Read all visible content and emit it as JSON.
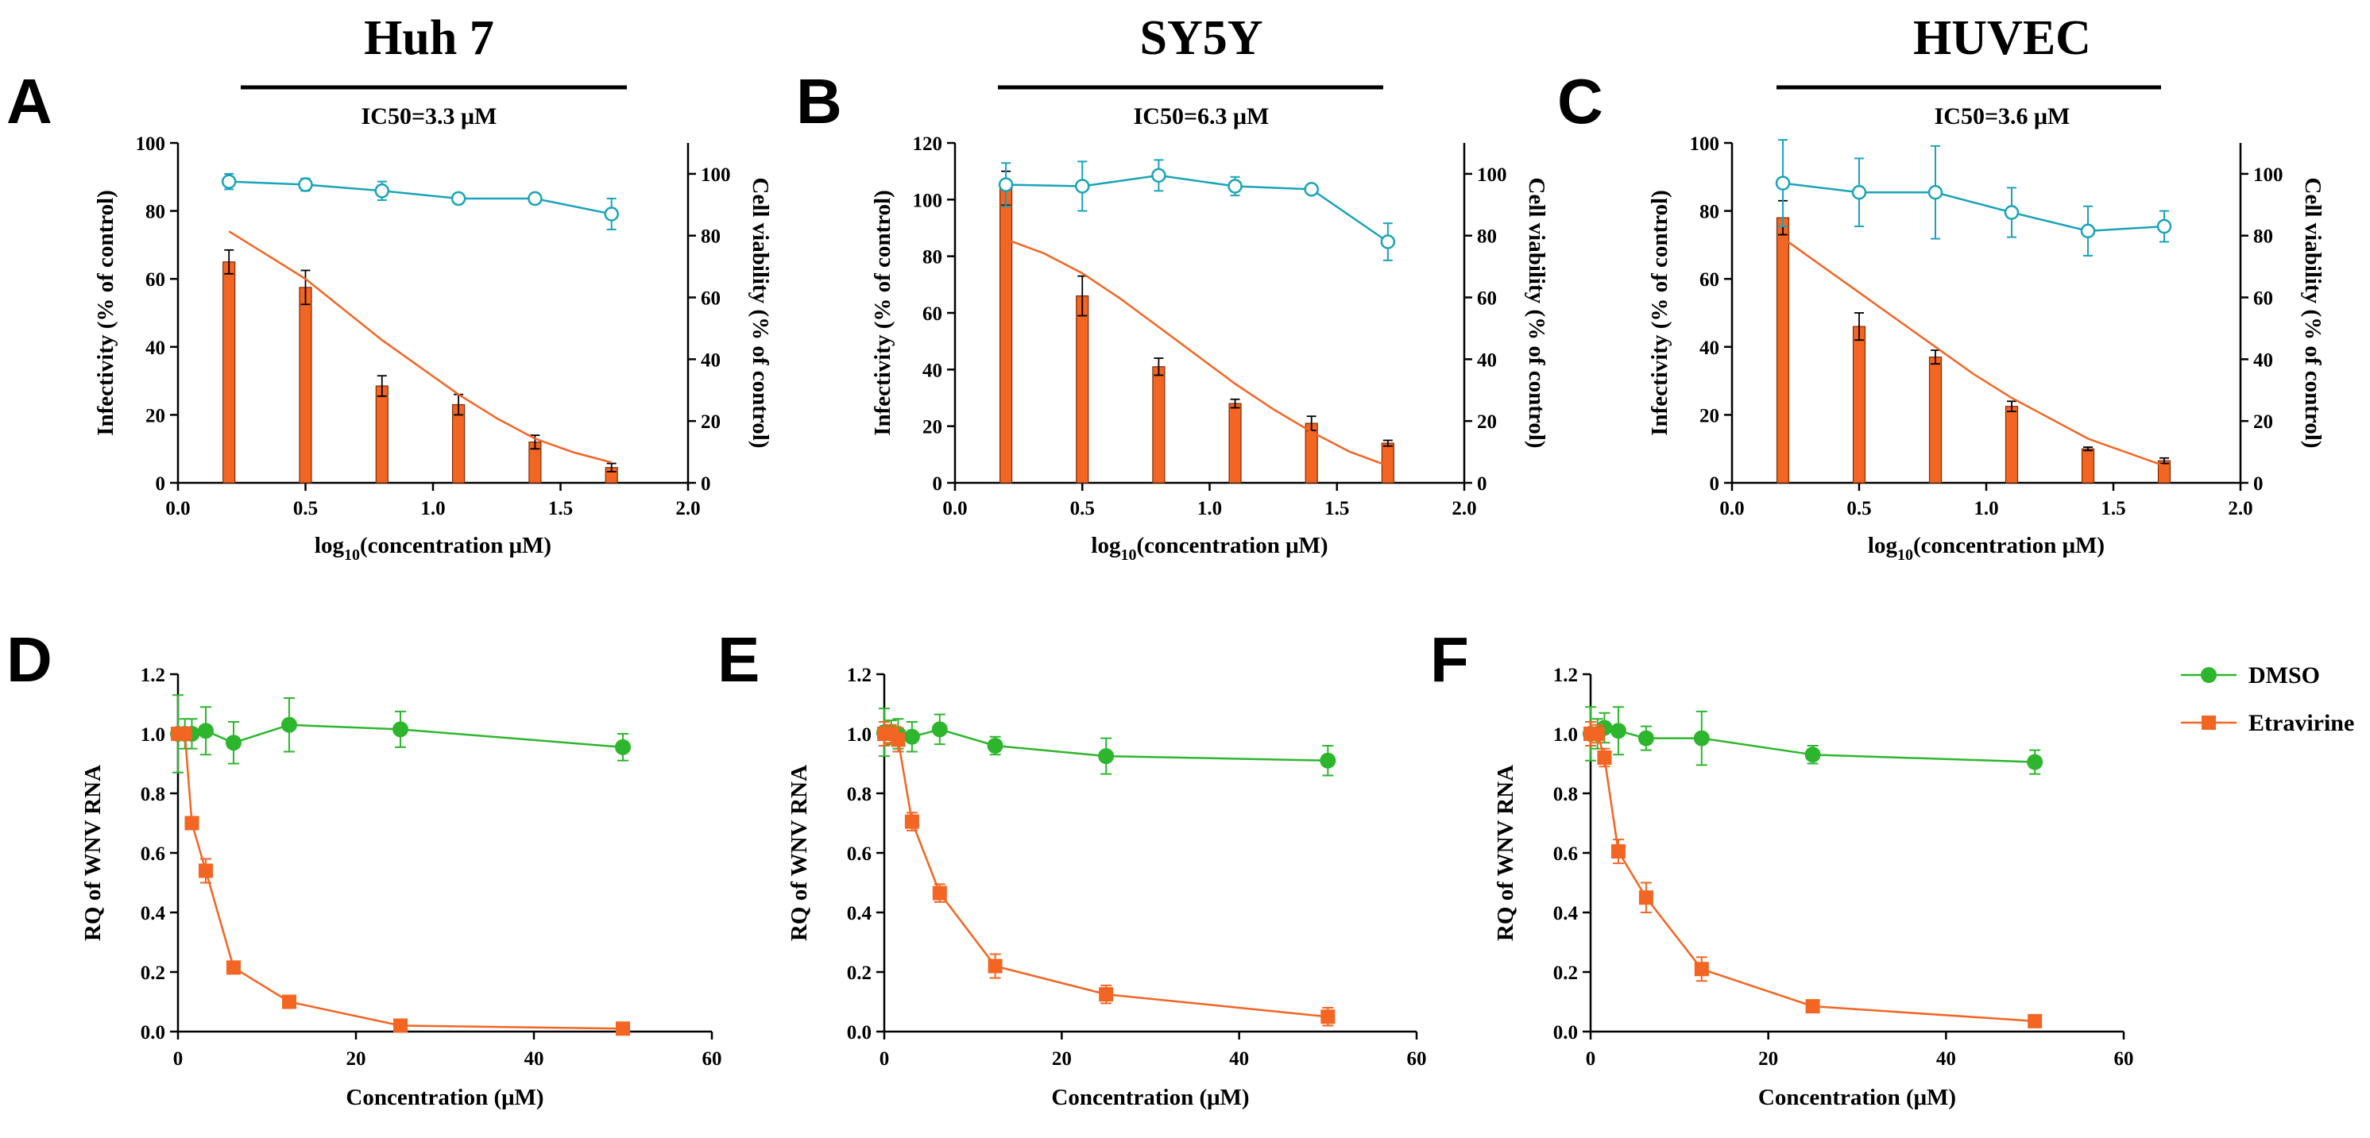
{
  "colors": {
    "bar": "#f26522",
    "viability": "#1aa3b8",
    "dmso": "#2db62d",
    "etravirine": "#f26522",
    "axis": "#000000"
  },
  "chart_data": [
    {
      "id": "A",
      "type": "bar",
      "cell_line": "Huh 7",
      "ic50": "IC50=3.3 μM",
      "xlabel_main": "log",
      "xlabel_sub": "10",
      "xlabel_rest": "(concentration μM)",
      "ylabel": "Infectivity (% of control)",
      "y2label": "Cell viability (% of control)",
      "xlim": [
        0,
        2
      ],
      "xticks": [
        0,
        0.5,
        1,
        1.5,
        2
      ],
      "xtick_labels": [
        "0.0",
        "0.5",
        "1.0",
        "1.5",
        "2.0"
      ],
      "ylim": [
        0,
        100
      ],
      "yticks": [
        0,
        20,
        40,
        60,
        80,
        100
      ],
      "ytick_labels": [
        "0",
        "20",
        "40",
        "60",
        "80",
        "100"
      ],
      "y2lim": [
        0,
        110
      ],
      "y2ticks": [
        0,
        20,
        40,
        60,
        80,
        100
      ],
      "y2tick_labels": [
        "0",
        "20",
        "40",
        "60",
        "80",
        "100"
      ],
      "x": [
        0.2,
        0.5,
        0.8,
        1.1,
        1.4,
        1.7
      ],
      "bars": [
        65,
        57.5,
        28.5,
        23,
        12,
        4.5
      ],
      "bar_err": [
        3.5,
        5,
        3,
        3,
        2,
        1.2
      ],
      "fit": [
        [
          0.2,
          74
        ],
        [
          0.35,
          67
        ],
        [
          0.5,
          60
        ],
        [
          0.65,
          51
        ],
        [
          0.8,
          42
        ],
        [
          0.95,
          34
        ],
        [
          1.1,
          26
        ],
        [
          1.25,
          19
        ],
        [
          1.4,
          13
        ],
        [
          1.55,
          9
        ],
        [
          1.7,
          6
        ]
      ],
      "viability": [
        97.5,
        96.5,
        94.5,
        92,
        92,
        87
      ],
      "viability_err": [
        2.5,
        2,
        3,
        0.5,
        0.5,
        5
      ]
    },
    {
      "id": "B",
      "type": "bar",
      "cell_line": "SY5Y",
      "ic50": "IC50=6.3 μM",
      "xlabel_main": "log",
      "xlabel_sub": "10",
      "xlabel_rest": "(concentration μM)",
      "ylabel": "Infectivity (% of control)",
      "y2label": "Cell viability (% of control)",
      "xlim": [
        0,
        2
      ],
      "xticks": [
        0,
        0.5,
        1,
        1.5,
        2
      ],
      "xtick_labels": [
        "0.0",
        "0.5",
        "1.0",
        "1.5",
        "2.0"
      ],
      "ylim": [
        0,
        120
      ],
      "yticks": [
        0,
        20,
        40,
        60,
        80,
        100,
        120
      ],
      "ytick_labels": [
        "0",
        "20",
        "40",
        "60",
        "80",
        "100",
        "120"
      ],
      "y2lim": [
        0,
        110
      ],
      "y2ticks": [
        0,
        20,
        40,
        60,
        80,
        100
      ],
      "y2tick_labels": [
        "0",
        "20",
        "40",
        "60",
        "80",
        "100"
      ],
      "x": [
        0.2,
        0.5,
        0.8,
        1.1,
        1.4,
        1.7
      ],
      "bars": [
        104,
        66,
        41,
        28,
        21,
        14
      ],
      "bar_err": [
        6,
        7,
        3,
        1.5,
        2.5,
        1
      ],
      "fit": [
        [
          0.2,
          86
        ],
        [
          0.35,
          81
        ],
        [
          0.5,
          74
        ],
        [
          0.65,
          65
        ],
        [
          0.8,
          55
        ],
        [
          0.95,
          45
        ],
        [
          1.1,
          35
        ],
        [
          1.25,
          26
        ],
        [
          1.4,
          18
        ],
        [
          1.55,
          11
        ],
        [
          1.7,
          6
        ]
      ],
      "viability": [
        96.5,
        96,
        99.5,
        96,
        95,
        78
      ],
      "viability_err": [
        7,
        8,
        5,
        3,
        1.5,
        6
      ]
    },
    {
      "id": "C",
      "type": "bar",
      "cell_line": "HUVEC",
      "ic50": "IC50=3.6 μM",
      "xlabel_main": "log",
      "xlabel_sub": "10",
      "xlabel_rest": "(concentration μM)",
      "ylabel": "Infectivity (% of control)",
      "y2label": "Cell viability (% of control)",
      "xlim": [
        0,
        2
      ],
      "xticks": [
        0,
        0.5,
        1,
        1.5,
        2
      ],
      "xtick_labels": [
        "0.0",
        "0.5",
        "1.0",
        "1.5",
        "2.0"
      ],
      "ylim": [
        0,
        100
      ],
      "yticks": [
        0,
        20,
        40,
        60,
        80,
        100
      ],
      "ytick_labels": [
        "0",
        "20",
        "40",
        "60",
        "80",
        "100"
      ],
      "y2lim": [
        0,
        110
      ],
      "y2ticks": [
        0,
        20,
        40,
        60,
        80,
        100
      ],
      "y2tick_labels": [
        "0",
        "20",
        "40",
        "60",
        "80",
        "100"
      ],
      "x": [
        0.2,
        0.5,
        0.8,
        1.1,
        1.4,
        1.7
      ],
      "bars": [
        78,
        46,
        37,
        22.5,
        10,
        6.5
      ],
      "bar_err": [
        5,
        4,
        2,
        1.5,
        0.5,
        0.8
      ],
      "fit": [
        [
          0.2,
          72
        ],
        [
          0.35,
          64
        ],
        [
          0.5,
          56
        ],
        [
          0.65,
          48
        ],
        [
          0.8,
          40
        ],
        [
          0.95,
          32
        ],
        [
          1.1,
          25
        ],
        [
          1.25,
          19
        ],
        [
          1.4,
          13
        ],
        [
          1.55,
          9
        ],
        [
          1.7,
          5
        ]
      ],
      "viability": [
        97,
        94,
        94,
        87.5,
        81.5,
        83
      ],
      "viability_err": [
        14,
        11,
        15,
        8,
        8,
        5
      ]
    },
    {
      "id": "D",
      "type": "line",
      "xlabel": "Concentration (μM)",
      "ylabel": "RQ of WNV RNA",
      "xlim": [
        0,
        60
      ],
      "xticks": [
        0,
        20,
        40,
        60
      ],
      "xtick_labels": [
        "0",
        "20",
        "40",
        "60"
      ],
      "ylim": [
        0,
        1.2
      ],
      "yticks": [
        0,
        0.2,
        0.4,
        0.6,
        0.8,
        1.0,
        1.2
      ],
      "ytick_labels": [
        "0.0",
        "0.2",
        "0.4",
        "0.6",
        "0.8",
        "1.0",
        "1.2"
      ],
      "x": [
        0,
        0.78,
        1.56,
        3.125,
        6.25,
        12.5,
        25,
        50
      ],
      "series": [
        {
          "name": "DMSO",
          "values": [
            1.0,
            1.0,
            1.0,
            1.01,
            0.97,
            1.03,
            1.015,
            0.955
          ],
          "err": [
            0.13,
            0.05,
            0.05,
            0.08,
            0.07,
            0.09,
            0.06,
            0.045
          ]
        },
        {
          "name": "Etravirine",
          "values": [
            1.0,
            1.0,
            0.7,
            0.54,
            0.215,
            0.1,
            0.02,
            0.01
          ],
          "err": [
            0.02,
            0.02,
            0.02,
            0.04,
            0.02,
            0.01,
            0.005,
            0.005
          ]
        }
      ]
    },
    {
      "id": "E",
      "type": "line",
      "xlabel": "Concentration (μM)",
      "ylabel": "RQ of WNV RNA",
      "xlim": [
        0,
        60
      ],
      "xticks": [
        0,
        20,
        40,
        60
      ],
      "xtick_labels": [
        "0",
        "20",
        "40",
        "60"
      ],
      "ylim": [
        0,
        1.2
      ],
      "yticks": [
        0,
        0.2,
        0.4,
        0.6,
        0.8,
        1.0,
        1.2
      ],
      "ytick_labels": [
        "0.0",
        "0.2",
        "0.4",
        "0.6",
        "0.8",
        "1.0",
        "1.2"
      ],
      "x": [
        0,
        0.78,
        1.56,
        3.125,
        6.25,
        12.5,
        25,
        50
      ],
      "series": [
        {
          "name": "DMSO",
          "values": [
            1.005,
            1.005,
            1.0,
            0.99,
            1.015,
            0.96,
            0.925,
            0.91
          ],
          "err": [
            0.08,
            0.04,
            0.05,
            0.05,
            0.05,
            0.03,
            0.06,
            0.05
          ]
        },
        {
          "name": "Etravirine",
          "values": [
            1.0,
            1.0,
            0.98,
            0.705,
            0.465,
            0.22,
            0.125,
            0.05
          ],
          "err": [
            0.04,
            0.03,
            0.04,
            0.03,
            0.03,
            0.04,
            0.03,
            0.03
          ]
        }
      ]
    },
    {
      "id": "F",
      "type": "line",
      "xlabel": "Concentration (μM)",
      "ylabel": "RQ of WNV RNA",
      "xlim": [
        0,
        60
      ],
      "xticks": [
        0,
        20,
        40,
        60
      ],
      "xtick_labels": [
        "0",
        "20",
        "40",
        "60"
      ],
      "ylim": [
        0,
        1.2
      ],
      "yticks": [
        0,
        0.2,
        0.4,
        0.6,
        0.8,
        1.0,
        1.2
      ],
      "ytick_labels": [
        "0.0",
        "0.2",
        "0.4",
        "0.6",
        "0.8",
        "1.0",
        "1.2"
      ],
      "x": [
        0,
        0.78,
        1.56,
        3.125,
        6.25,
        12.5,
        25,
        50
      ],
      "series": [
        {
          "name": "DMSO",
          "values": [
            1.0,
            1.0,
            1.02,
            1.01,
            0.985,
            0.985,
            0.93,
            0.905
          ],
          "err": [
            0.09,
            0.05,
            0.05,
            0.08,
            0.04,
            0.09,
            0.03,
            0.04
          ]
        },
        {
          "name": "Etravirine",
          "values": [
            1.0,
            1.0,
            0.92,
            0.605,
            0.45,
            0.21,
            0.085,
            0.035
          ],
          "err": [
            0.04,
            0.03,
            0.03,
            0.04,
            0.05,
            0.04,
            0.01,
            0.01
          ]
        }
      ]
    }
  ],
  "legend": {
    "items": [
      {
        "name": "DMSO"
      },
      {
        "name": "Etravirine"
      }
    ]
  }
}
